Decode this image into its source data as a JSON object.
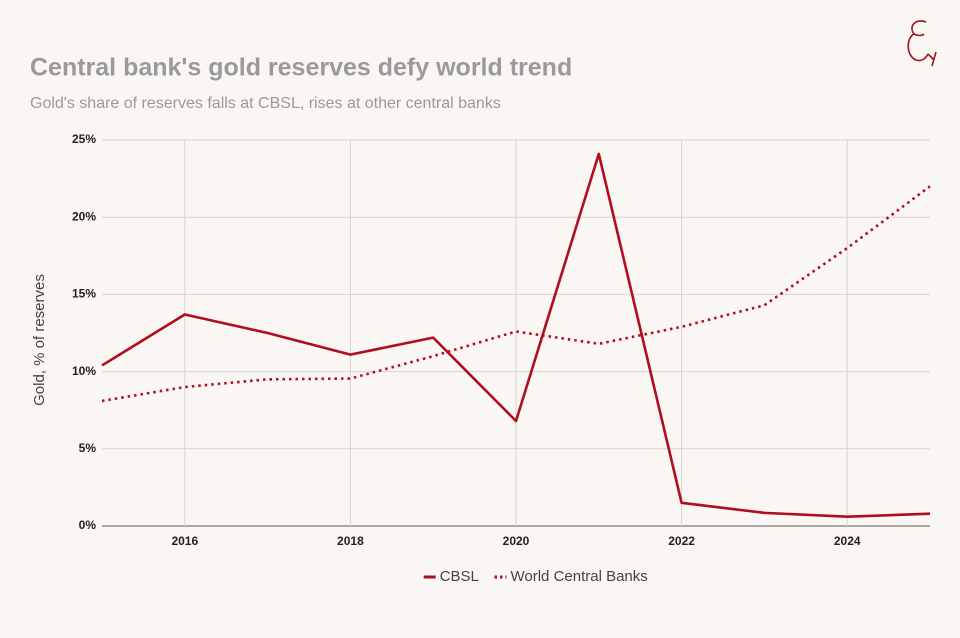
{
  "chart_data": {
    "type": "line",
    "title": "Central bank's gold reserves defy world trend",
    "subtitle": "Gold's share of reserves falls at CBSL, rises at other central banks",
    "y_label": "Gold, % of reserves",
    "x": [
      2015,
      2016,
      2017,
      2018,
      2019,
      2020,
      2021,
      2022,
      2023,
      2024,
      2025
    ],
    "series": [
      {
        "name": "CBSL",
        "color": "#b00d1e",
        "line_style": "solid",
        "values": [
          10.4,
          13.7,
          12.5,
          11.1,
          12.2,
          6.8,
          24.1,
          1.5,
          0.85,
          0.6,
          0.8
        ]
      },
      {
        "name": "World Central Banks",
        "color": "#b00d1e",
        "line_style": "dotted",
        "values": [
          8.1,
          9.0,
          9.5,
          9.55,
          11.0,
          12.6,
          11.8,
          12.9,
          14.3,
          18.0,
          22.0
        ]
      }
    ],
    "xlim": [
      2015,
      2025
    ],
    "xticks": [
      2016,
      2018,
      2020,
      2022,
      2024
    ],
    "ylim": [
      0,
      25
    ],
    "yticks": [
      {
        "value": 0,
        "label": "0%"
      },
      {
        "value": 5,
        "label": "5%"
      },
      {
        "value": 10,
        "label": "10%"
      },
      {
        "value": 15,
        "label": "15%"
      },
      {
        "value": 20,
        "label": "20%"
      },
      {
        "value": 25,
        "label": "25%"
      }
    ],
    "grid": true,
    "legend": "bottom"
  }
}
